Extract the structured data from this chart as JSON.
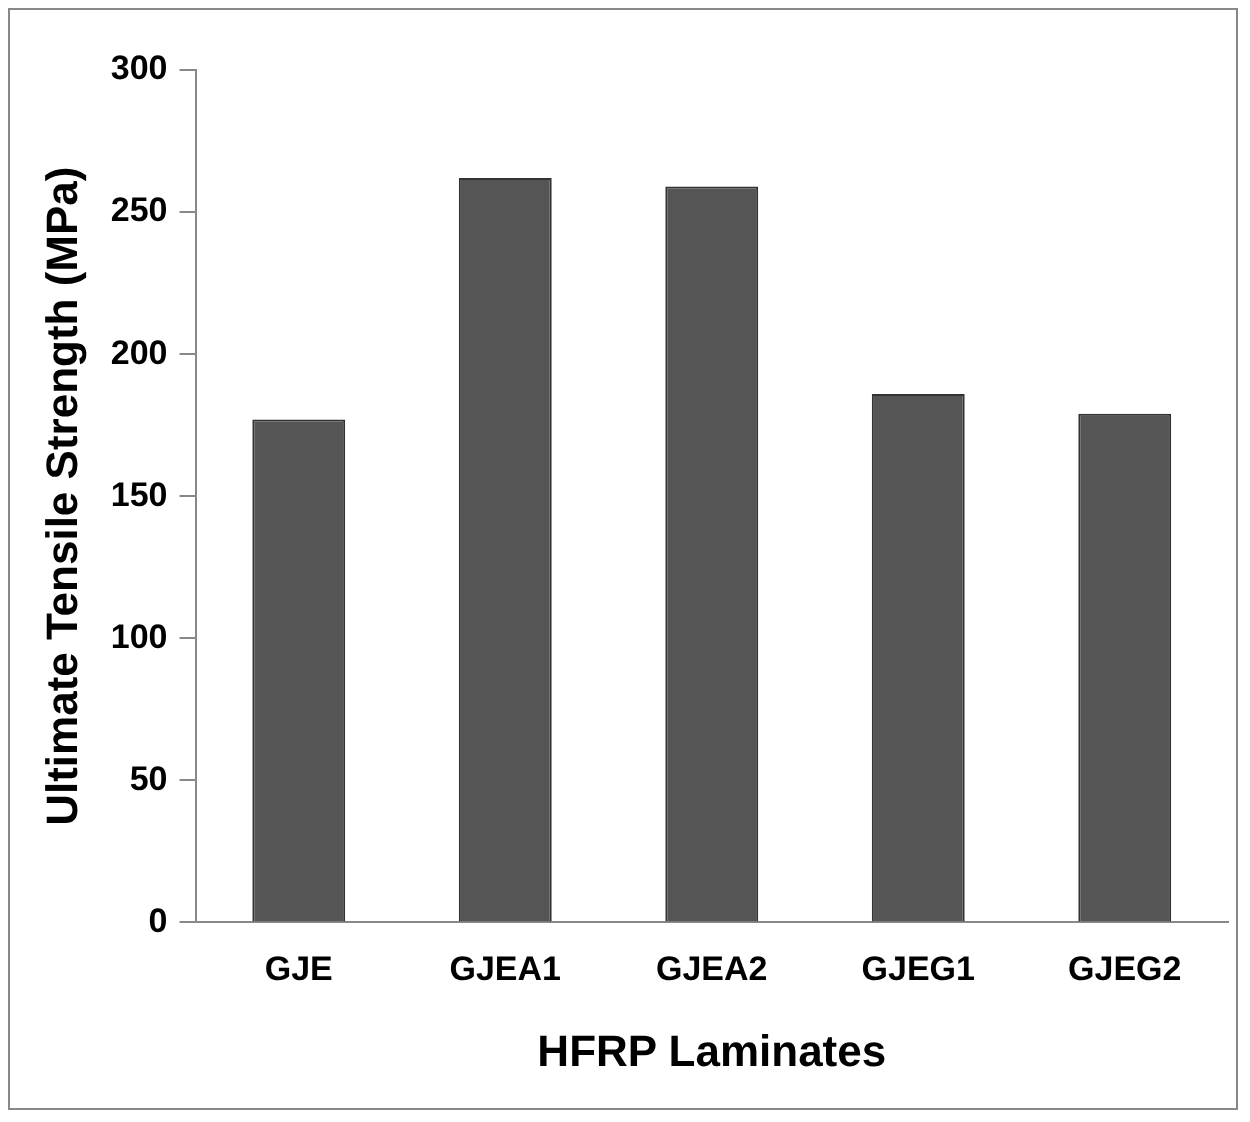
{
  "chart_data": {
    "type": "bar",
    "xlabel": "HFRP Laminates",
    "ylabel": "Ultimate Tensile Strength (MPa)",
    "categories": [
      "GJE",
      "GJEA1",
      "GJEA2",
      "GJEG1",
      "GJEG2"
    ],
    "values": [
      177,
      262,
      259,
      186,
      179
    ],
    "color": "#555555",
    "ylim": [
      0,
      300
    ],
    "yticks": [
      0,
      50,
      100,
      150,
      200,
      250,
      300
    ],
    "grid": false,
    "legend": false
  }
}
